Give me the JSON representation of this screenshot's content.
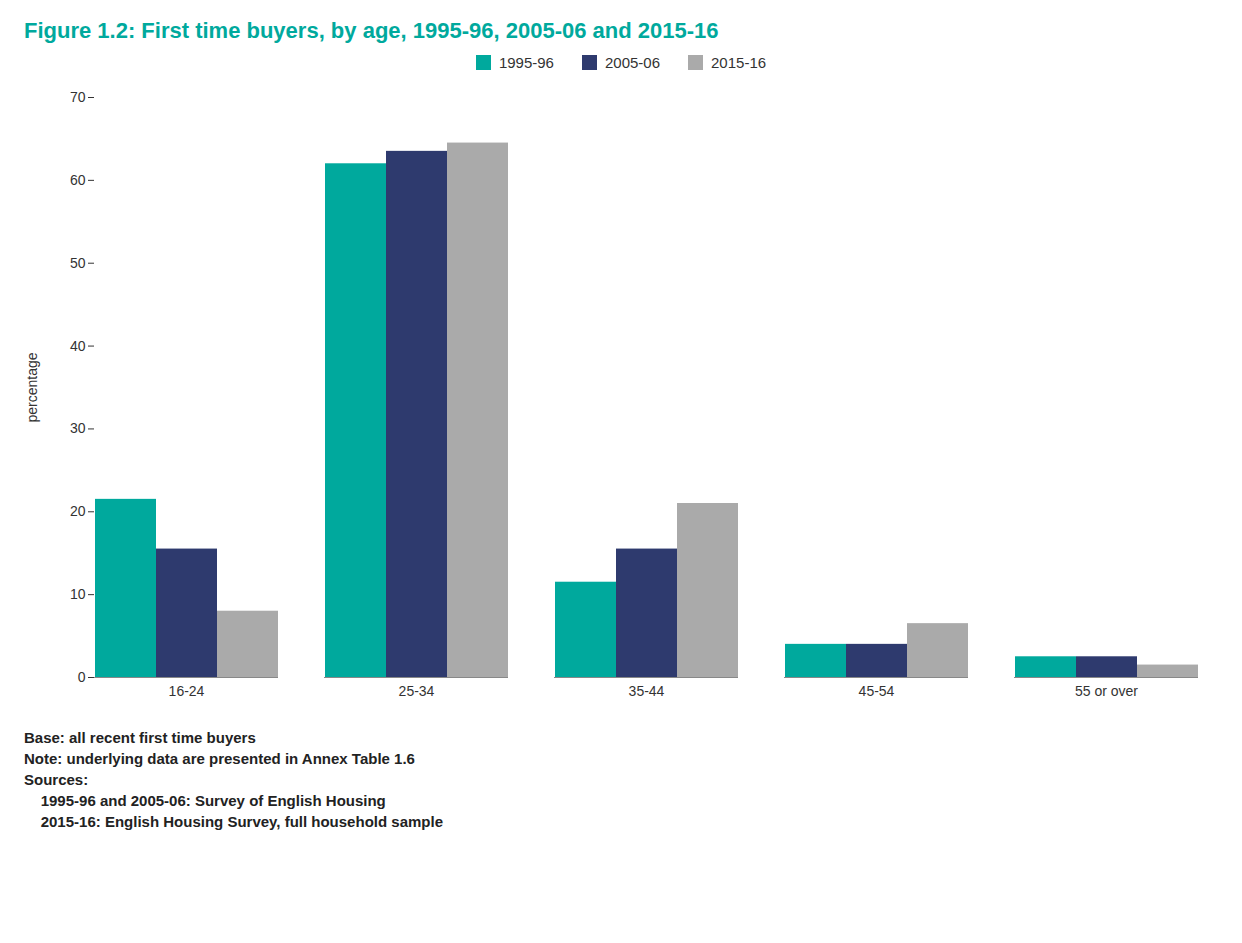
{
  "chart_data": {
    "type": "bar",
    "title": "Figure 1.2: First time buyers, by age, 1995-96, 2005-06 and 2015-16",
    "categories": [
      "16-24",
      "25-34",
      "35-44",
      "45-54",
      "55 or over"
    ],
    "series": [
      {
        "name": "1995-96",
        "color": "#00A99D",
        "values": [
          21.5,
          62.0,
          11.5,
          4.0,
          2.5
        ]
      },
      {
        "name": "2005-06",
        "color": "#2E3A6E",
        "values": [
          15.5,
          63.5,
          15.5,
          4.0,
          2.5
        ]
      },
      {
        "name": "2015-16",
        "color": "#AAAAAA",
        "values": [
          8.0,
          64.5,
          21.0,
          6.5,
          1.5
        ]
      }
    ],
    "ylabel": "percentage",
    "ylim": [
      0,
      70
    ],
    "yticks": [
      0,
      10,
      20,
      30,
      40,
      50,
      60,
      70
    ],
    "grid": false,
    "legend": "top",
    "annotations": [
      "Base: all recent first time buyers",
      "Note: underlying data are presented in Annex Table 1.6",
      "Sources:",
      "    1995-96 and 2005-06: Survey of English Housing",
      "    2015-16: English Housing Survey, full household sample"
    ]
  }
}
